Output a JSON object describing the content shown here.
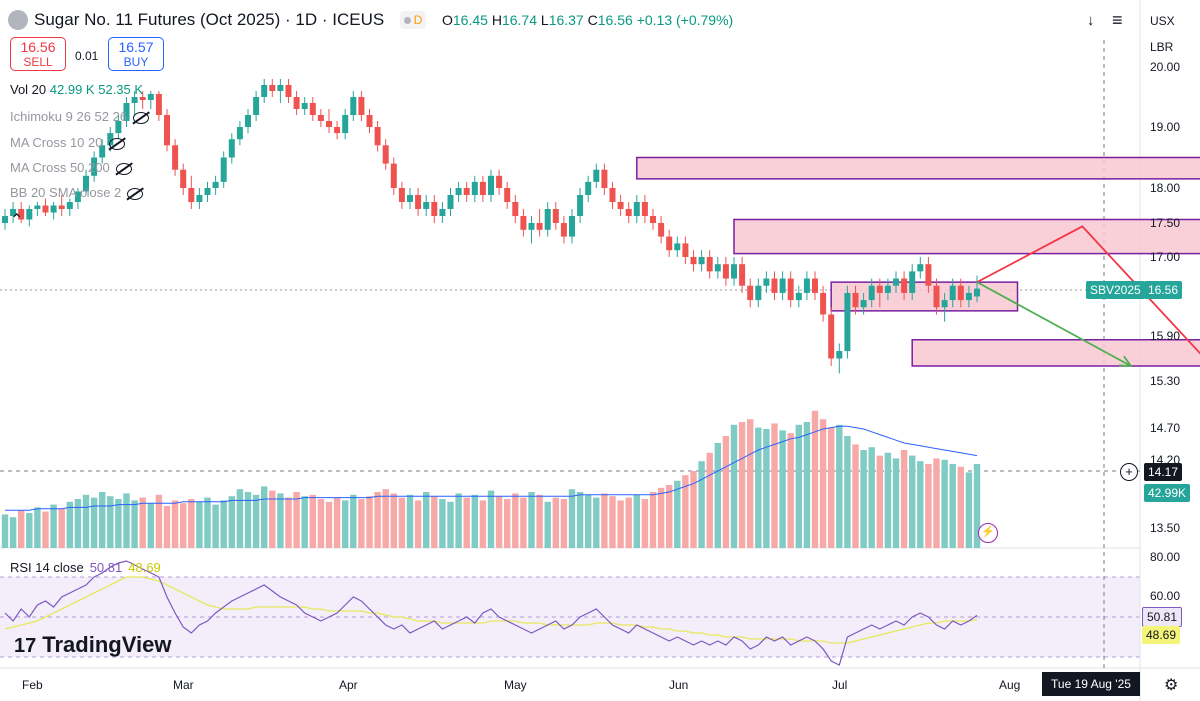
{
  "header": {
    "symbol_title": "Sugar No. 11 Futures (Oct 2025) · 1D · ICEUS",
    "badge": "D",
    "ohlc": {
      "o_label": "O",
      "o": "16.45",
      "h_label": "H",
      "h": "16.74",
      "l_label": "L",
      "l": "16.37",
      "c_label": "C",
      "c": "16.56",
      "change": "+0.13 (+0.79%)"
    },
    "sell": {
      "price": "16.56",
      "label": "SELL"
    },
    "buy": {
      "price": "16.57",
      "label": "BUY"
    },
    "spread": "0.01",
    "currency": "USX",
    "unit": "LBR"
  },
  "indicators": {
    "vol": {
      "label": "Vol 20",
      "v1": "42.99 K",
      "v2": "52.35 K"
    },
    "ichimoku": "Ichimoku 9 26 52 26",
    "ma_cross_1": "MA Cross 10 20",
    "ma_cross_2": "MA Cross 50 200",
    "bb": "BB 20 SMA close 2",
    "rsi": {
      "label": "RSI 14 close",
      "v1": "50.81",
      "v2": "48.69"
    }
  },
  "branding": {
    "logo_text": "TradingView",
    "logo_mark": "17"
  },
  "footer": {
    "date_box": "Tue 19 Aug '25"
  },
  "colors": {
    "up": "#26a69a",
    "down": "#ef5350",
    "vol_up": "#80cbc4",
    "vol_down": "#f7a9a7",
    "zone_fill": "#f8c8d0",
    "zone_border": "#7b1fa2",
    "rsi_line": "#7e57c2",
    "rsi_ma": "#e8e85a",
    "vol_ma": "#2962ff",
    "arrow_red": "#f23645",
    "arrow_green": "#4caf50"
  },
  "chart_data": {
    "type": "candlestick",
    "x_labels": [
      "Feb",
      "Mar",
      "Apr",
      "May",
      "Jun",
      "Jul",
      "Aug"
    ],
    "price_axis": {
      "ticks": [
        "20.00",
        "19.00",
        "18.00",
        "17.50",
        "17.00",
        "15.90",
        "15.30",
        "14.70",
        "14.20",
        "13.50"
      ],
      "current_label": "16.56",
      "series_label": "SBV2025",
      "crosshair_label": "14.17",
      "volume_label": "42.99K"
    },
    "rsi_axis": {
      "ticks": [
        "80.00",
        "60.00"
      ],
      "rsi_label": "50.81",
      "rsi_ma_label": "48.69"
    },
    "candles": [
      [
        17.5,
        17.7,
        17.4,
        17.6
      ],
      [
        17.6,
        17.8,
        17.5,
        17.7
      ],
      [
        17.7,
        17.8,
        17.5,
        17.55
      ],
      [
        17.55,
        17.75,
        17.45,
        17.7
      ],
      [
        17.7,
        17.8,
        17.6,
        17.75
      ],
      [
        17.75,
        17.85,
        17.6,
        17.65
      ],
      [
        17.65,
        17.8,
        17.55,
        17.75
      ],
      [
        17.75,
        17.9,
        17.6,
        17.7
      ],
      [
        17.7,
        17.85,
        17.6,
        17.8
      ],
      [
        17.8,
        18.0,
        17.7,
        17.95
      ],
      [
        17.95,
        18.3,
        17.9,
        18.2
      ],
      [
        18.2,
        18.6,
        18.1,
        18.5
      ],
      [
        18.5,
        18.8,
        18.4,
        18.7
      ],
      [
        18.7,
        19.0,
        18.6,
        18.9
      ],
      [
        18.9,
        19.2,
        18.8,
        19.1
      ],
      [
        19.1,
        19.5,
        19.0,
        19.4
      ],
      [
        19.4,
        19.6,
        19.2,
        19.5
      ],
      [
        19.5,
        19.6,
        19.3,
        19.45
      ],
      [
        19.45,
        19.6,
        19.3,
        19.55
      ],
      [
        19.55,
        19.6,
        19.1,
        19.2
      ],
      [
        19.2,
        19.3,
        18.6,
        18.7
      ],
      [
        18.7,
        18.8,
        18.2,
        18.3
      ],
      [
        18.3,
        18.4,
        17.9,
        18.0
      ],
      [
        18.0,
        18.2,
        17.7,
        17.8
      ],
      [
        17.8,
        18.0,
        17.7,
        17.9
      ],
      [
        17.9,
        18.1,
        17.8,
        18.0
      ],
      [
        18.0,
        18.2,
        17.9,
        18.1
      ],
      [
        18.1,
        18.6,
        18.0,
        18.5
      ],
      [
        18.5,
        18.9,
        18.4,
        18.8
      ],
      [
        18.8,
        19.1,
        18.7,
        19.0
      ],
      [
        19.0,
        19.3,
        18.9,
        19.2
      ],
      [
        19.2,
        19.6,
        19.1,
        19.5
      ],
      [
        19.5,
        19.8,
        19.4,
        19.7
      ],
      [
        19.7,
        19.8,
        19.5,
        19.6
      ],
      [
        19.6,
        19.8,
        19.4,
        19.7
      ],
      [
        19.7,
        19.8,
        19.4,
        19.5
      ],
      [
        19.5,
        19.6,
        19.2,
        19.3
      ],
      [
        19.3,
        19.5,
        19.2,
        19.4
      ],
      [
        19.4,
        19.5,
        19.1,
        19.2
      ],
      [
        19.2,
        19.3,
        19.0,
        19.1
      ],
      [
        19.1,
        19.3,
        18.9,
        19.0
      ],
      [
        19.0,
        19.1,
        18.8,
        18.9
      ],
      [
        18.9,
        19.3,
        18.8,
        19.2
      ],
      [
        19.2,
        19.6,
        19.1,
        19.5
      ],
      [
        19.5,
        19.6,
        19.1,
        19.2
      ],
      [
        19.2,
        19.3,
        18.9,
        19.0
      ],
      [
        19.0,
        19.1,
        18.6,
        18.7
      ],
      [
        18.7,
        18.8,
        18.3,
        18.4
      ],
      [
        18.4,
        18.5,
        17.9,
        18.0
      ],
      [
        18.0,
        18.1,
        17.7,
        17.8
      ],
      [
        17.8,
        18.0,
        17.7,
        17.9
      ],
      [
        17.9,
        18.0,
        17.6,
        17.7
      ],
      [
        17.7,
        17.9,
        17.6,
        17.8
      ],
      [
        17.8,
        17.9,
        17.5,
        17.6
      ],
      [
        17.6,
        17.8,
        17.5,
        17.7
      ],
      [
        17.7,
        18.0,
        17.6,
        17.9
      ],
      [
        17.9,
        18.1,
        17.8,
        18.0
      ],
      [
        18.0,
        18.1,
        17.8,
        17.9
      ],
      [
        17.9,
        18.2,
        17.8,
        18.1
      ],
      [
        18.1,
        18.2,
        17.8,
        17.9
      ],
      [
        17.9,
        18.3,
        17.8,
        18.2
      ],
      [
        18.2,
        18.3,
        17.9,
        18.0
      ],
      [
        18.0,
        18.1,
        17.7,
        17.8
      ],
      [
        17.8,
        17.9,
        17.5,
        17.6
      ],
      [
        17.6,
        17.7,
        17.3,
        17.4
      ],
      [
        17.4,
        17.6,
        17.2,
        17.5
      ],
      [
        17.5,
        17.7,
        17.3,
        17.4
      ],
      [
        17.4,
        17.8,
        17.3,
        17.7
      ],
      [
        17.7,
        17.8,
        17.4,
        17.5
      ],
      [
        17.5,
        17.6,
        17.2,
        17.3
      ],
      [
        17.3,
        17.7,
        17.2,
        17.6
      ],
      [
        17.6,
        18.0,
        17.5,
        17.9
      ],
      [
        17.9,
        18.2,
        17.8,
        18.1
      ],
      [
        18.1,
        18.4,
        18.0,
        18.3
      ],
      [
        18.3,
        18.4,
        17.9,
        18.0
      ],
      [
        18.0,
        18.1,
        17.7,
        17.8
      ],
      [
        17.8,
        17.9,
        17.6,
        17.7
      ],
      [
        17.7,
        17.8,
        17.5,
        17.6
      ],
      [
        17.6,
        17.9,
        17.5,
        17.8
      ],
      [
        17.8,
        17.9,
        17.5,
        17.6
      ],
      [
        17.6,
        17.7,
        17.4,
        17.5
      ],
      [
        17.5,
        17.6,
        17.2,
        17.3
      ],
      [
        17.3,
        17.4,
        17.0,
        17.1
      ],
      [
        17.1,
        17.3,
        17.0,
        17.2
      ],
      [
        17.2,
        17.3,
        16.9,
        17.0
      ],
      [
        17.0,
        17.1,
        16.8,
        16.9
      ],
      [
        16.9,
        17.1,
        16.8,
        17.0
      ],
      [
        17.0,
        17.1,
        16.7,
        16.8
      ],
      [
        16.8,
        17.0,
        16.7,
        16.9
      ],
      [
        16.9,
        17.0,
        16.6,
        16.7
      ],
      [
        16.7,
        17.0,
        16.6,
        16.9
      ],
      [
        16.9,
        17.0,
        16.5,
        16.6
      ],
      [
        16.6,
        16.7,
        16.3,
        16.4
      ],
      [
        16.4,
        16.7,
        16.3,
        16.6
      ],
      [
        16.6,
        16.8,
        16.5,
        16.7
      ],
      [
        16.7,
        16.8,
        16.4,
        16.5
      ],
      [
        16.5,
        16.8,
        16.4,
        16.7
      ],
      [
        16.7,
        16.8,
        16.3,
        16.4
      ],
      [
        16.4,
        16.6,
        16.3,
        16.5
      ],
      [
        16.5,
        16.8,
        16.4,
        16.7
      ],
      [
        16.7,
        16.8,
        16.4,
        16.5
      ],
      [
        16.5,
        16.6,
        16.1,
        16.2
      ],
      [
        16.2,
        16.3,
        15.5,
        15.6
      ],
      [
        15.6,
        15.8,
        15.4,
        15.7
      ],
      [
        15.7,
        16.6,
        15.6,
        16.5
      ],
      [
        16.5,
        16.6,
        16.2,
        16.3
      ],
      [
        16.3,
        16.5,
        16.2,
        16.4
      ],
      [
        16.4,
        16.7,
        16.3,
        16.6
      ],
      [
        16.6,
        16.7,
        16.3,
        16.5
      ],
      [
        16.5,
        16.7,
        16.4,
        16.6
      ],
      [
        16.6,
        16.8,
        16.5,
        16.7
      ],
      [
        16.7,
        16.8,
        16.4,
        16.5
      ],
      [
        16.5,
        16.9,
        16.4,
        16.8
      ],
      [
        16.8,
        17.0,
        16.7,
        16.9
      ],
      [
        16.9,
        17.0,
        16.5,
        16.6
      ],
      [
        16.6,
        16.7,
        16.2,
        16.3
      ],
      [
        16.3,
        16.5,
        16.1,
        16.4
      ],
      [
        16.4,
        16.7,
        16.3,
        16.6
      ],
      [
        16.6,
        16.7,
        16.3,
        16.4
      ],
      [
        16.4,
        16.6,
        16.3,
        16.5
      ],
      [
        16.45,
        16.74,
        16.37,
        16.56
      ]
    ],
    "volume_scale_max": 100,
    "volumes": [
      24,
      22,
      27,
      25,
      29,
      26,
      31,
      28,
      33,
      35,
      38,
      36,
      40,
      37,
      35,
      39,
      34,
      36,
      32,
      38,
      30,
      34,
      32,
      35,
      33,
      36,
      31,
      34,
      37,
      42,
      40,
      38,
      44,
      41,
      39,
      36,
      40,
      37,
      38,
      35,
      33,
      36,
      34,
      38,
      35,
      37,
      40,
      42,
      39,
      36,
      38,
      34,
      40,
      37,
      35,
      33,
      39,
      36,
      38,
      34,
      41,
      37,
      35,
      39,
      36,
      40,
      38,
      33,
      36,
      35,
      42,
      40,
      38,
      36,
      39,
      37,
      34,
      36,
      38,
      35,
      40,
      43,
      45,
      48,
      52,
      55,
      62,
      68,
      75,
      80,
      88,
      90,
      92,
      86,
      85,
      89,
      84,
      82,
      88,
      90,
      98,
      92,
      86,
      88,
      80,
      74,
      70,
      72,
      66,
      68,
      64,
      70,
      66,
      62,
      60,
      64,
      63,
      60,
      58,
      54,
      60
    ],
    "volume_ma": [
      27,
      27,
      27,
      27,
      28,
      28,
      28,
      28,
      29,
      29,
      29,
      30,
      30,
      30,
      31,
      31,
      31,
      32,
      32,
      32,
      32,
      32,
      33,
      33,
      33,
      33,
      33,
      33,
      34,
      34,
      34,
      34,
      35,
      35,
      35,
      35,
      35,
      36,
      36,
      36,
      36,
      36,
      36,
      36,
      36,
      36,
      37,
      37,
      37,
      37,
      37,
      37,
      37,
      37,
      37,
      37,
      37,
      37,
      37,
      37,
      37,
      37,
      37,
      37,
      37,
      37,
      37,
      37,
      37,
      37,
      37,
      38,
      38,
      38,
      38,
      38,
      38,
      38,
      38,
      38,
      38,
      39,
      40,
      42,
      44,
      46,
      49,
      52,
      55,
      58,
      61,
      64,
      67,
      70,
      72,
      74,
      76,
      78,
      79,
      81,
      83,
      85,
      86,
      87,
      87,
      86,
      85,
      83,
      81,
      79,
      77,
      75,
      74,
      73,
      72,
      71,
      70,
      69,
      68,
      67,
      66
    ],
    "rsi": [
      52,
      48,
      54,
      50,
      56,
      58,
      55,
      60,
      62,
      64,
      66,
      70,
      72,
      75,
      77,
      78,
      76,
      74,
      72,
      70,
      60,
      52,
      45,
      42,
      46,
      48,
      52,
      55,
      58,
      60,
      62,
      64,
      66,
      63,
      60,
      58,
      56,
      52,
      50,
      48,
      50,
      52,
      56,
      60,
      58,
      54,
      50,
      46,
      44,
      46,
      42,
      44,
      46,
      48,
      44,
      46,
      48,
      50,
      47,
      52,
      54,
      50,
      48,
      46,
      44,
      42,
      44,
      46,
      48,
      44,
      46,
      50,
      52,
      54,
      50,
      46,
      44,
      42,
      46,
      44,
      42,
      40,
      38,
      40,
      38,
      36,
      38,
      36,
      38,
      36,
      40,
      38,
      34,
      36,
      40,
      38,
      40,
      36,
      38,
      40,
      38,
      34,
      28,
      26,
      40,
      42,
      44,
      46,
      44,
      46,
      48,
      46,
      50,
      52,
      50,
      46,
      44,
      48,
      46,
      48,
      50.81
    ],
    "rsi_ma": [
      44,
      45,
      46,
      47,
      48,
      50,
      52,
      54,
      56,
      58,
      60,
      62,
      64,
      66,
      68,
      70,
      70,
      70,
      69,
      68,
      66,
      64,
      62,
      60,
      58,
      56,
      55,
      54,
      54,
      54,
      54,
      55,
      55,
      55,
      55,
      55,
      55,
      55,
      54,
      54,
      53,
      53,
      53,
      53,
      53,
      52,
      52,
      51,
      50,
      50,
      49,
      48,
      48,
      48,
      47,
      47,
      47,
      47,
      47,
      47,
      48,
      48,
      48,
      48,
      47,
      47,
      47,
      46,
      46,
      46,
      46,
      46,
      46,
      47,
      47,
      47,
      46,
      46,
      46,
      45,
      45,
      44,
      44,
      43,
      43,
      42,
      42,
      41,
      41,
      40,
      40,
      40,
      39,
      39,
      39,
      39,
      39,
      39,
      38,
      38,
      38,
      38,
      37,
      37,
      37,
      38,
      39,
      40,
      41,
      42,
      43,
      44,
      45,
      46,
      47,
      47,
      48,
      48,
      48,
      48,
      48.69
    ],
    "zones": [
      {
        "from_bar": 78,
        "to_bar": 152,
        "low": 18.15,
        "high": 18.5
      },
      {
        "from_bar": 90,
        "to_bar": 148,
        "low": 17.05,
        "high": 17.55
      },
      {
        "from_bar": 102,
        "to_bar": 125,
        "low": 16.25,
        "high": 16.65
      },
      {
        "from_bar": 112,
        "to_bar": 150,
        "low": 15.5,
        "high": 15.85
      }
    ],
    "arrows": [
      {
        "color": "red",
        "points": [
          [
            120,
            16.65
          ],
          [
            133,
            17.45
          ],
          [
            149,
            15.5
          ]
        ]
      },
      {
        "color": "green",
        "points": [
          [
            120,
            16.65
          ],
          [
            139,
            15.5
          ]
        ]
      }
    ]
  }
}
